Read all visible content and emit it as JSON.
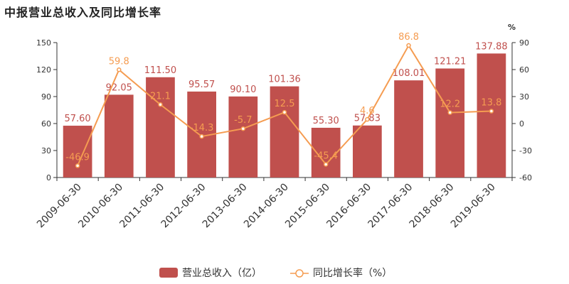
{
  "title": "中报营业总收入及同比增长率",
  "chart_data": {
    "type": "bar",
    "categories": [
      "2009-06-30",
      "2010-06-30",
      "2011-06-30",
      "2012-06-30",
      "2013-06-30",
      "2014-06-30",
      "2015-06-30",
      "2016-06-30",
      "2017-06-30",
      "2018-06-30",
      "2019-06-30"
    ],
    "series": [
      {
        "name": "营业总收入（亿）",
        "type": "bar",
        "color": "#c0504d",
        "values": [
          57.6,
          92.05,
          111.5,
          95.57,
          90.1,
          101.36,
          55.3,
          57.83,
          108.01,
          121.21,
          137.88
        ],
        "labels": [
          "57.60",
          "92.05",
          "111.50",
          "95.57",
          "90.10",
          "101.36",
          "55.30",
          "57.83",
          "108.01",
          "121.21",
          "137.88"
        ]
      },
      {
        "name": "同比增长率（%）",
        "type": "line",
        "color": "#f59c51",
        "axis": "right",
        "values": [
          -46.9,
          59.8,
          21.1,
          -14.3,
          -5.7,
          12.5,
          -45.4,
          4.6,
          86.8,
          12.2,
          13.8
        ],
        "labels": [
          "-46.9",
          "59.8",
          "21.1",
          "-14.3",
          "-5.7",
          "12.5",
          "-45.4",
          "4.6",
          "86.8",
          "12.2",
          "13.8"
        ]
      }
    ],
    "left_axis": {
      "ylim": [
        0,
        150
      ],
      "ticks": [
        "0",
        "30",
        "60",
        "90",
        "120",
        "150"
      ]
    },
    "right_axis": {
      "ylim": [
        -60,
        90
      ],
      "ticks": [
        "-60",
        "-30",
        "0",
        "30",
        "60",
        "90"
      ],
      "unit": "%"
    },
    "legend": {
      "position": "bottom",
      "bar_label": "营业总收入（亿）",
      "line_label": "同比增长率（%）"
    },
    "grid": false
  }
}
